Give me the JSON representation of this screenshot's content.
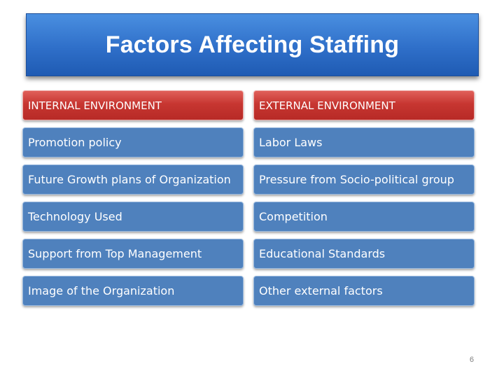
{
  "slide": {
    "title": "Factors Affecting Staffing",
    "page_number": "6"
  },
  "internal": {
    "header": "INTERNAL ENVIRONMENT",
    "items": [
      "Promotion policy",
      "Future Growth plans of Organization",
      "Technology Used",
      "Support from Top Management",
      "Image of the Organization"
    ]
  },
  "external": {
    "header": "EXTERNAL ENVIRONMENT",
    "items": [
      "Labor Laws",
      "Pressure from Socio-political group",
      "Competition",
      "Educational Standards",
      "Other external factors"
    ]
  },
  "colors": {
    "title_bg": "#2f6fc9",
    "header_bg": "#c73631",
    "item_bg": "#4f81bd"
  }
}
